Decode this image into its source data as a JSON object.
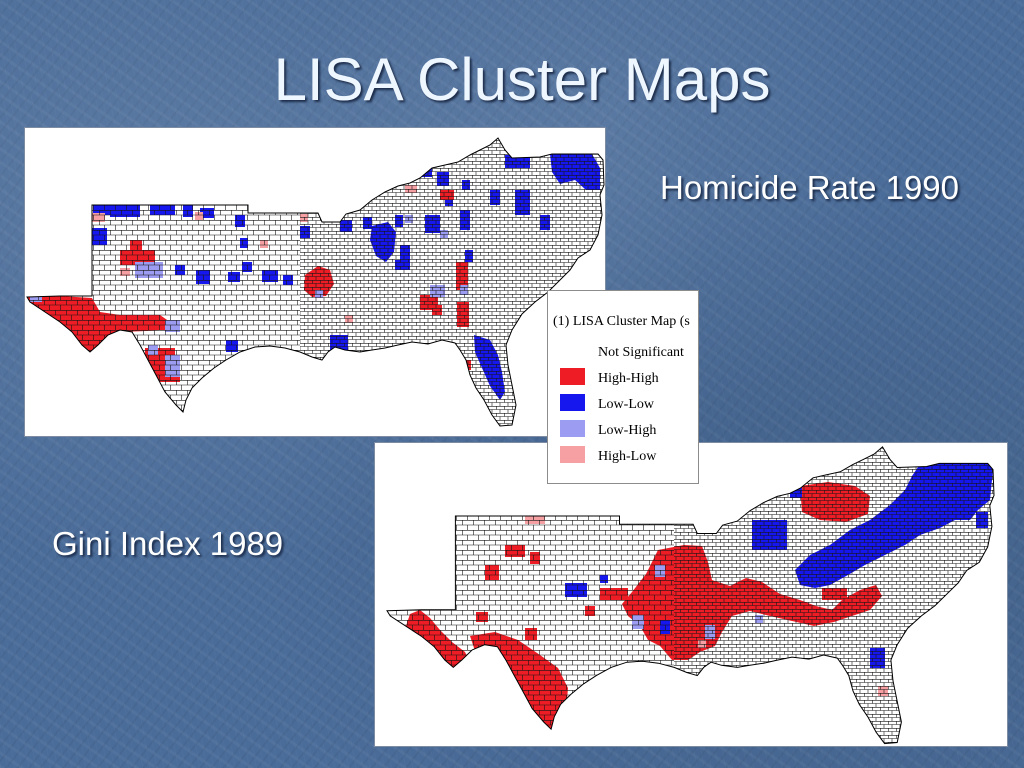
{
  "slide": {
    "title": "LISA Cluster Maps",
    "colors": {
      "background": "#4a6c99",
      "text": "#eef6ff"
    }
  },
  "maps": [
    {
      "label": "Homicide Rate 1990"
    },
    {
      "label": "Gini Index 1989"
    }
  ],
  "legend": {
    "title": "(1) LISA Cluster Map (s",
    "items": [
      {
        "label": "Not Significant",
        "color": "#ffffff"
      },
      {
        "label": "High-High",
        "color": "#ee1c24"
      },
      {
        "label": "Low-Low",
        "color": "#1616ee"
      },
      {
        "label": "Low-High",
        "color": "#9c9cf2"
      },
      {
        "label": "High-Low",
        "color": "#f6a0a4"
      }
    ]
  }
}
